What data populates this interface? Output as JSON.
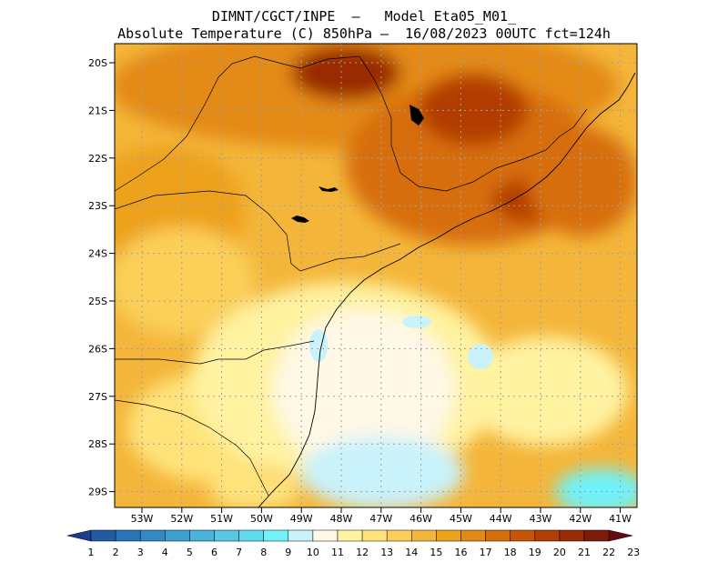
{
  "header": {
    "title_line1": "DIMNT/CGCT/INPE  –   Model Eta05_M01_",
    "title_line2": "Absolute Temperature (C) 850hPa –  16/08/2023 00UTC fct=124h"
  },
  "axes": {
    "lat_labels": [
      "20S",
      "21S",
      "22S",
      "23S",
      "24S",
      "25S",
      "26S",
      "27S",
      "28S",
      "29S"
    ],
    "lon_labels": [
      "53W",
      "52W",
      "51W",
      "50W",
      "49W",
      "48W",
      "47W",
      "46W",
      "45W",
      "44W",
      "43W",
      "42W",
      "41W"
    ]
  },
  "colorbar": {
    "labels": [
      "1",
      "2",
      "3",
      "4",
      "5",
      "6",
      "7",
      "8",
      "9",
      "10",
      "11",
      "12",
      "13",
      "14",
      "15",
      "16",
      "17",
      "18",
      "19",
      "20",
      "21",
      "22",
      "23"
    ],
    "colors": [
      "#1a3e8c",
      "#225aa6",
      "#2a74b8",
      "#3289c4",
      "#3d9fd0",
      "#48b4dc",
      "#55c9e6",
      "#5fdcee",
      "#6ff2fa",
      "#c9f2fb",
      "#fff8e6",
      "#fff2a0",
      "#ffe37a",
      "#fbcf58",
      "#f4b63a",
      "#eea21c",
      "#e48a14",
      "#d76e0c",
      "#c85506",
      "#b33d04",
      "#9a2a04",
      "#7e1a08",
      "#620c12"
    ]
  },
  "map_data": {
    "field": "Absolute Temperature (C) 850hPa",
    "lat_range": [
      20,
      29.4
    ],
    "lon_range": [
      53.6,
      40.6
    ]
  }
}
